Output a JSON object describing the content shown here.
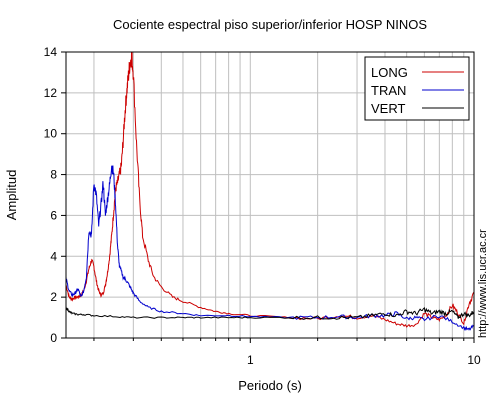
{
  "chart_data": {
    "type": "line",
    "title": "Cociente espectral piso superior/inferior  HOSP NINOS",
    "xlabel": "Periodo (s)",
    "ylabel": "Amplitud",
    "xscale": "log",
    "xlim": [
      0.15,
      10
    ],
    "ylim": [
      0,
      14
    ],
    "x_ticks": [
      1,
      10
    ],
    "x_tick_labels": [
      "1",
      "10"
    ],
    "y_ticks": [
      0,
      2,
      4,
      6,
      8,
      10,
      12,
      14
    ],
    "y_tick_labels": [
      "0",
      "2",
      "4",
      "6",
      "8",
      "10",
      "12",
      "14"
    ],
    "grid": true,
    "legend_position": "top-right",
    "watermark": "http://www.lis.ucr.ac.cr",
    "series": [
      {
        "name": "LONG",
        "color": "#cc0000",
        "points": [
          [
            0.15,
            2.6
          ],
          [
            0.155,
            2.0
          ],
          [
            0.16,
            1.9
          ],
          [
            0.165,
            2.0
          ],
          [
            0.17,
            2.0
          ],
          [
            0.175,
            2.1
          ],
          [
            0.18,
            2.3
          ],
          [
            0.185,
            2.8
          ],
          [
            0.19,
            3.4
          ],
          [
            0.195,
            3.8
          ],
          [
            0.2,
            3.5
          ],
          [
            0.205,
            2.8
          ],
          [
            0.21,
            2.3
          ],
          [
            0.215,
            2.1
          ],
          [
            0.22,
            2.2
          ],
          [
            0.225,
            2.6
          ],
          [
            0.23,
            3.2
          ],
          [
            0.235,
            4.0
          ],
          [
            0.24,
            5.0
          ],
          [
            0.245,
            6.2
          ],
          [
            0.25,
            7.3
          ],
          [
            0.255,
            7.6
          ],
          [
            0.26,
            8.0
          ],
          [
            0.265,
            8.4
          ],
          [
            0.27,
            9.6
          ],
          [
            0.275,
            11.0
          ],
          [
            0.28,
            12.0
          ],
          [
            0.285,
            12.8
          ],
          [
            0.29,
            13.5
          ],
          [
            0.295,
            13.8
          ],
          [
            0.3,
            13.0
          ],
          [
            0.31,
            9.5
          ],
          [
            0.32,
            6.8
          ],
          [
            0.33,
            5.0
          ],
          [
            0.35,
            3.8
          ],
          [
            0.37,
            3.0
          ],
          [
            0.4,
            2.5
          ],
          [
            0.45,
            2.0
          ],
          [
            0.5,
            1.8
          ],
          [
            0.6,
            1.5
          ],
          [
            0.7,
            1.3
          ],
          [
            0.8,
            1.2
          ],
          [
            1.0,
            1.1
          ],
          [
            1.5,
            1.0
          ],
          [
            2.0,
            0.95
          ],
          [
            2.5,
            1.1
          ],
          [
            3.0,
            1.0
          ],
          [
            3.5,
            1.1
          ],
          [
            4.0,
            0.9
          ],
          [
            4.5,
            0.7
          ],
          [
            5.0,
            0.6
          ],
          [
            5.5,
            0.65
          ],
          [
            6.0,
            1.2
          ],
          [
            6.5,
            1.0
          ],
          [
            7.0,
            0.9
          ],
          [
            7.5,
            1.1
          ],
          [
            8.0,
            1.6
          ],
          [
            8.5,
            1.2
          ],
          [
            9.0,
            0.7
          ],
          [
            9.5,
            1.7
          ],
          [
            10.0,
            2.2
          ]
        ]
      },
      {
        "name": "TRAN",
        "color": "#0000cc",
        "points": [
          [
            0.15,
            2.9
          ],
          [
            0.155,
            2.3
          ],
          [
            0.16,
            2.1
          ],
          [
            0.165,
            2.2
          ],
          [
            0.17,
            2.4
          ],
          [
            0.175,
            2.0
          ],
          [
            0.18,
            2.3
          ],
          [
            0.185,
            3.0
          ],
          [
            0.19,
            5.3
          ],
          [
            0.195,
            5.0
          ],
          [
            0.2,
            7.6
          ],
          [
            0.205,
            7.0
          ],
          [
            0.21,
            5.5
          ],
          [
            0.215,
            6.5
          ],
          [
            0.22,
            7.6
          ],
          [
            0.225,
            6.0
          ],
          [
            0.23,
            6.8
          ],
          [
            0.235,
            7.5
          ],
          [
            0.24,
            8.5
          ],
          [
            0.245,
            8.0
          ],
          [
            0.25,
            6.5
          ],
          [
            0.255,
            4.5
          ],
          [
            0.26,
            3.5
          ],
          [
            0.27,
            3.0
          ],
          [
            0.28,
            2.8
          ],
          [
            0.29,
            2.5
          ],
          [
            0.3,
            2.2
          ],
          [
            0.32,
            1.8
          ],
          [
            0.35,
            1.5
          ],
          [
            0.4,
            1.3
          ],
          [
            0.5,
            1.2
          ],
          [
            0.6,
            1.1
          ],
          [
            0.8,
            1.1
          ],
          [
            1.0,
            1.05
          ],
          [
            1.5,
            1.0
          ],
          [
            2.0,
            1.0
          ],
          [
            2.5,
            1.05
          ],
          [
            3.0,
            1.0
          ],
          [
            3.5,
            1.1
          ],
          [
            4.0,
            1.1
          ],
          [
            4.5,
            1.2
          ],
          [
            5.0,
            0.95
          ],
          [
            5.5,
            1.0
          ],
          [
            6.0,
            0.9
          ],
          [
            7.0,
            1.1
          ],
          [
            8.0,
            0.8
          ],
          [
            9.0,
            0.5
          ],
          [
            9.5,
            0.4
          ],
          [
            10.0,
            0.6
          ]
        ]
      },
      {
        "name": "VERT",
        "color": "#000000",
        "points": [
          [
            0.15,
            1.5
          ],
          [
            0.155,
            1.3
          ],
          [
            0.16,
            1.2
          ],
          [
            0.17,
            1.15
          ],
          [
            0.18,
            1.15
          ],
          [
            0.2,
            1.1
          ],
          [
            0.25,
            1.05
          ],
          [
            0.3,
            1.0
          ],
          [
            0.4,
            1.0
          ],
          [
            0.5,
            1.0
          ],
          [
            0.6,
            1.0
          ],
          [
            0.8,
            1.0
          ],
          [
            1.0,
            1.0
          ],
          [
            1.5,
            1.0
          ],
          [
            2.0,
            1.0
          ],
          [
            2.5,
            1.0
          ],
          [
            3.0,
            1.0
          ],
          [
            3.5,
            1.1
          ],
          [
            4.0,
            1.2
          ],
          [
            4.5,
            1.1
          ],
          [
            5.0,
            1.3
          ],
          [
            5.5,
            1.2
          ],
          [
            6.0,
            1.4
          ],
          [
            6.5,
            1.2
          ],
          [
            7.0,
            1.3
          ],
          [
            7.5,
            1.2
          ],
          [
            8.0,
            1.3
          ],
          [
            8.5,
            1.0
          ],
          [
            9.0,
            1.2
          ],
          [
            9.5,
            1.1
          ],
          [
            10.0,
            1.3
          ]
        ]
      }
    ]
  }
}
